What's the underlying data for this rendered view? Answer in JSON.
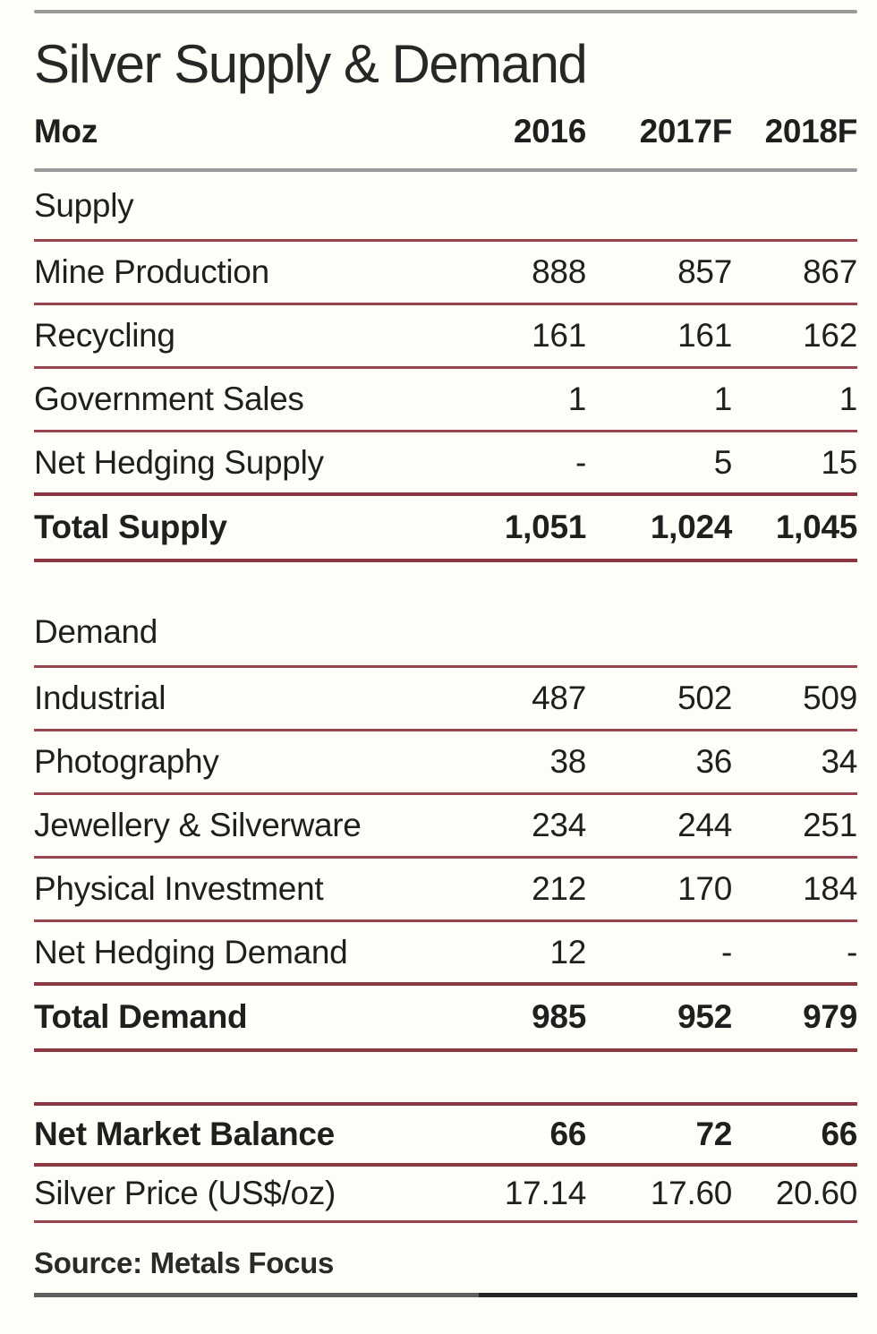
{
  "title": "Silver Supply & Demand",
  "table": {
    "unit_label": "Moz",
    "columns": [
      "2016",
      "2017F",
      "2018F"
    ],
    "sections": [
      {
        "name": "Supply",
        "rows": [
          {
            "label": "Mine Production",
            "values": [
              "888",
              "857",
              "867"
            ]
          },
          {
            "label": "Recycling",
            "values": [
              "161",
              "161",
              "162"
            ]
          },
          {
            "label": "Government Sales",
            "values": [
              "1",
              "1",
              "1"
            ]
          },
          {
            "label": "Net Hedging Supply",
            "values": [
              "-",
              "5",
              "15"
            ]
          }
        ],
        "total": {
          "label": "Total Supply",
          "values": [
            "1,051",
            "1,024",
            "1,045"
          ]
        }
      },
      {
        "name": "Demand",
        "rows": [
          {
            "label": "Industrial",
            "values": [
              "487",
              "502",
              "509"
            ]
          },
          {
            "label": "Photography",
            "values": [
              "38",
              "36",
              "34"
            ]
          },
          {
            "label": "Jewellery & Silverware",
            "values": [
              "234",
              "244",
              "251"
            ]
          },
          {
            "label": "Physical Investment",
            "values": [
              "212",
              "170",
              "184"
            ]
          },
          {
            "label": "Net Hedging Demand",
            "values": [
              "12",
              "-",
              "-"
            ]
          }
        ],
        "total": {
          "label": "Total Demand",
          "values": [
            "985",
            "952",
            "979"
          ]
        }
      }
    ],
    "summary_rows": [
      {
        "label": "Net Market Balance",
        "values": [
          "66",
          "72",
          "66"
        ],
        "bold": true
      },
      {
        "label": "Silver Price (US$/oz)",
        "values": [
          "17.14",
          "17.60",
          "20.60"
        ],
        "bold": false
      }
    ]
  },
  "source": "Source: Metals Focus",
  "colors": {
    "background": "#fffdf8",
    "text": "#1f1f1f",
    "rule_maroon": "#98454d",
    "rule_maroon_strong": "#8b3640",
    "rule_gray": "#9a9a9a",
    "bottom_rule_left": "#5e5e5e",
    "bottom_rule_right": "#242424"
  },
  "chart_data": {
    "type": "table",
    "title": "Silver Supply & Demand",
    "unit": "Moz",
    "columns": [
      "2016",
      "2017F",
      "2018F"
    ],
    "sections": [
      {
        "name": "Supply",
        "rows": [
          {
            "label": "Mine Production",
            "values": [
              888,
              857,
              867
            ]
          },
          {
            "label": "Recycling",
            "values": [
              161,
              161,
              162
            ]
          },
          {
            "label": "Government Sales",
            "values": [
              1,
              1,
              1
            ]
          },
          {
            "label": "Net Hedging Supply",
            "values": [
              null,
              5,
              15
            ]
          }
        ],
        "total": {
          "label": "Total Supply",
          "values": [
            1051,
            1024,
            1045
          ]
        }
      },
      {
        "name": "Demand",
        "rows": [
          {
            "label": "Industrial",
            "values": [
              487,
              502,
              509
            ]
          },
          {
            "label": "Photography",
            "values": [
              38,
              36,
              34
            ]
          },
          {
            "label": "Jewellery & Silverware",
            "values": [
              234,
              244,
              251
            ]
          },
          {
            "label": "Physical Investment",
            "values": [
              212,
              170,
              184
            ]
          },
          {
            "label": "Net Hedging Demand",
            "values": [
              12,
              null,
              null
            ]
          }
        ],
        "total": {
          "label": "Total Demand",
          "values": [
            985,
            952,
            979
          ]
        }
      }
    ],
    "summary": [
      {
        "label": "Net Market Balance",
        "values": [
          66,
          72,
          66
        ]
      },
      {
        "label": "Silver Price (US$/oz)",
        "values": [
          17.14,
          17.6,
          20.6
        ]
      }
    ],
    "source": "Source: Metals Focus"
  }
}
